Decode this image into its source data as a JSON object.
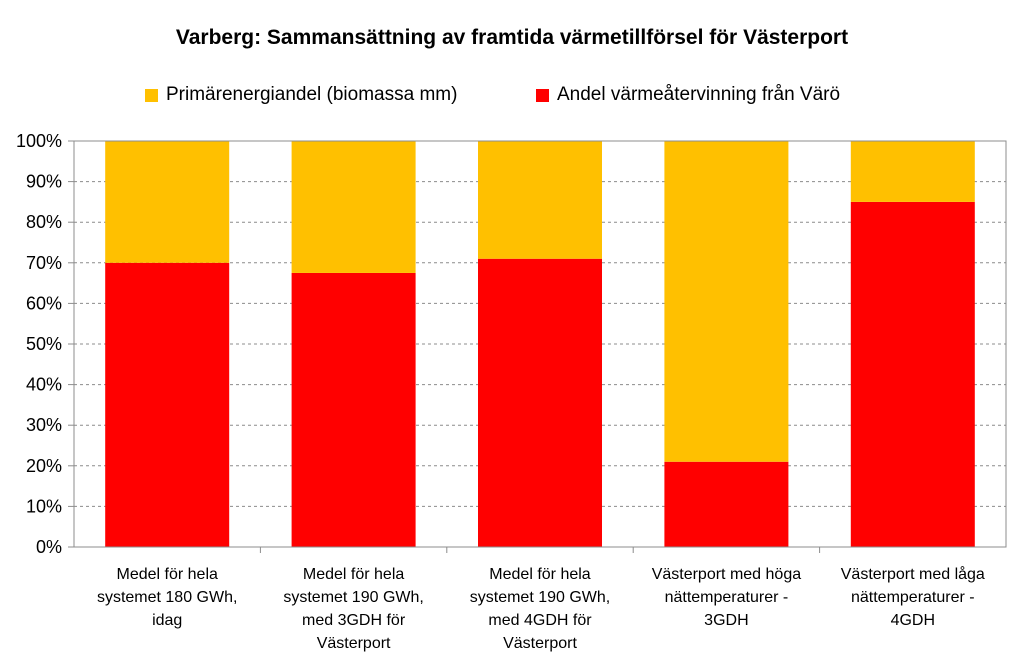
{
  "chart_data": {
    "type": "bar",
    "stacked": true,
    "title": "Varberg:  Sammansättning av framtida värmetillförsel för Västerport",
    "categories": [
      [
        "Medel för hela",
        "systemet 180 GWh,",
        "idag"
      ],
      [
        "Medel för hela",
        "systemet 190 GWh,",
        "med 3GDH för",
        "Västerport"
      ],
      [
        "Medel för hela",
        "systemet 190 GWh,",
        "med 4GDH för",
        "Västerport"
      ],
      [
        "Västerport med höga",
        "nättemperaturer -",
        "3GDH"
      ],
      [
        "Västerport med låga",
        "nättemperaturer -",
        "4GDH"
      ]
    ],
    "series": [
      {
        "name": "Andel värmeåtervinning från Värö",
        "color": "#ff0000",
        "values": [
          70,
          67.5,
          71,
          21,
          85
        ]
      },
      {
        "name": "Primärenergiandel (biomassa mm)",
        "color": "#ffc000",
        "values": [
          30,
          32.5,
          29,
          79,
          15
        ]
      }
    ],
    "legend_order": [
      1,
      0
    ],
    "yticks": [
      "0%",
      "10%",
      "20%",
      "30%",
      "40%",
      "50%",
      "60%",
      "70%",
      "80%",
      "90%",
      "100%"
    ],
    "ylim": [
      0,
      100
    ],
    "xlabel": "",
    "ylabel": "",
    "grid": true,
    "legend_position": "top"
  }
}
